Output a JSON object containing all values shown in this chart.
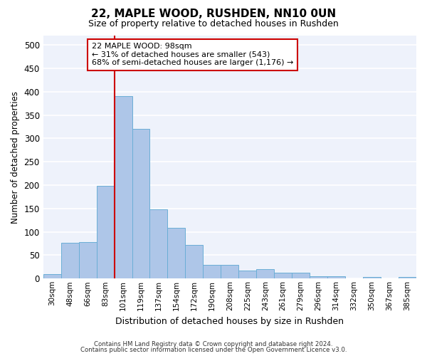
{
  "title": "22, MAPLE WOOD, RUSHDEN, NN10 0UN",
  "subtitle": "Size of property relative to detached houses in Rushden",
  "xlabel": "Distribution of detached houses by size in Rushden",
  "ylabel": "Number of detached properties",
  "categories": [
    "30sqm",
    "48sqm",
    "66sqm",
    "83sqm",
    "101sqm",
    "119sqm",
    "137sqm",
    "154sqm",
    "172sqm",
    "190sqm",
    "208sqm",
    "225sqm",
    "243sqm",
    "261sqm",
    "279sqm",
    "296sqm",
    "314sqm",
    "332sqm",
    "350sqm",
    "367sqm",
    "385sqm"
  ],
  "values": [
    10,
    77,
    78,
    198,
    390,
    320,
    148,
    109,
    72,
    30,
    30,
    17,
    20,
    12,
    12,
    5,
    5,
    0,
    3,
    0,
    3
  ],
  "bar_color": "#aec6e8",
  "bar_edge_color": "#6aaed6",
  "vline_x_index": 4,
  "vline_color": "#cc0000",
  "ylim": [
    0,
    520
  ],
  "yticks": [
    0,
    50,
    100,
    150,
    200,
    250,
    300,
    350,
    400,
    450,
    500
  ],
  "annotation_text": "22 MAPLE WOOD: 98sqm\n← 31% of detached houses are smaller (543)\n68% of semi-detached houses are larger (1,176) →",
  "annotation_box_color": "#ffffff",
  "annotation_box_edge_color": "#cc0000",
  "background_color": "#eef2fb",
  "footer_line1": "Contains HM Land Registry data © Crown copyright and database right 2024.",
  "footer_line2": "Contains public sector information licensed under the Open Government Licence v3.0."
}
